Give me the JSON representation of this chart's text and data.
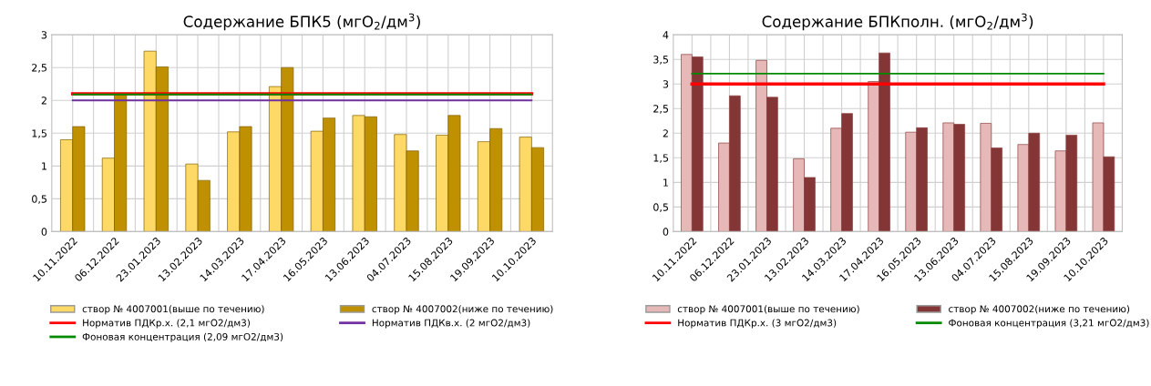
{
  "chart_data": [
    {
      "type": "bar",
      "title": "Содержание БПК5 (мгО$_{2}$/дм$^{3}$)",
      "categories": [
        "10.11.2022",
        "06.12.2022",
        "23.01.2023",
        "13.02.2023",
        "14.03.2023",
        "17.04.2023",
        "16.05.2023",
        "13.06.2023",
        "04.07.2023",
        "15.08.2023",
        "19.09.2023",
        "10.10.2023"
      ],
      "series": [
        {
          "name": "створ № 4007001(выше по течению)",
          "color": "#ffd966",
          "values": [
            1.4,
            1.12,
            2.75,
            1.03,
            1.52,
            2.21,
            1.53,
            1.77,
            1.48,
            1.47,
            1.37,
            1.44
          ]
        },
        {
          "name": "створ № 4007002(ниже по течению)",
          "color": "#bf9000",
          "values": [
            1.6,
            2.1,
            2.51,
            0.78,
            1.6,
            2.5,
            1.73,
            1.75,
            1.23,
            1.77,
            1.57,
            1.28
          ]
        },
        {
          "type": "line",
          "name": "Норматив ПДКр.х. (2,1 мгО2/дм3)",
          "color": "#ff0000",
          "values": [
            2.1,
            2.1,
            2.1,
            2.1,
            2.1,
            2.1,
            2.1,
            2.1,
            2.1,
            2.1,
            2.1,
            2.1
          ]
        },
        {
          "type": "line",
          "name": "Норматив ПДКв.х. (2 мгО2/дм3)",
          "color": "#7030a0",
          "values": [
            2,
            2,
            2,
            2,
            2,
            2,
            2,
            2,
            2,
            2,
            2,
            2
          ]
        },
        {
          "type": "line",
          "name": "Фоновая концентрация (2,09 мгО2/дм3)",
          "color": "#008a00",
          "values": [
            2.09,
            2.09,
            2.09,
            2.09,
            2.09,
            2.09,
            2.09,
            2.09,
            2.09,
            2.09,
            2.09,
            2.09
          ]
        }
      ],
      "ylim": [
        0,
        3
      ],
      "yticks": [
        0,
        {
          "value": 0.5,
          "label": "0,5"
        },
        1,
        {
          "value": 1.5,
          "label": "1,5"
        },
        2,
        {
          "value": 2.5,
          "label": "2,5"
        },
        3
      ],
      "grid": true,
      "legend": "bottom"
    },
    {
      "type": "bar",
      "title": "Содержание БПКполн. (мгО$_{2}$/дм$^{3}$)",
      "categories": [
        "10.11.2022",
        "06.12.2022",
        "23.01.2023",
        "13.02.2023",
        "14.03.2023",
        "17.04.2023",
        "16.05.2023",
        "13.06.2023",
        "04.07.2023",
        "15.08.2023",
        "19.09.2023",
        "10.10.2023"
      ],
      "series": [
        {
          "name": "створ № 4007001(выше по течению)",
          "color": "#e6b8b7",
          "values": [
            3.6,
            1.8,
            3.48,
            1.48,
            2.1,
            3.05,
            2.02,
            2.21,
            2.2,
            1.77,
            1.64,
            2.21
          ]
        },
        {
          "name": "створ № 4007002(ниже по течению)",
          "color": "#843636",
          "values": [
            3.55,
            2.76,
            2.73,
            1.1,
            2.4,
            3.63,
            2.11,
            2.18,
            1.7,
            2.0,
            1.96,
            1.52
          ]
        },
        {
          "type": "line",
          "name": "Норматив ПДКр.х. (3 мгО2/дм3)",
          "color": "#ff0000",
          "values": [
            3,
            3,
            3,
            3,
            3,
            3,
            3,
            3,
            3,
            3,
            3,
            3
          ]
        },
        {
          "type": "line",
          "name": "Фоновая концентрация (3,21 мгО2/дм3)",
          "color": "#008a00",
          "values": [
            3.21,
            3.21,
            3.21,
            3.21,
            3.21,
            3.21,
            3.21,
            3.21,
            3.21,
            3.21,
            3.21,
            3.21
          ]
        }
      ],
      "ylim": [
        0,
        4
      ],
      "yticks": [
        0,
        {
          "value": 0.5,
          "label": "0,5"
        },
        1,
        {
          "value": 1.5,
          "label": "1,5"
        },
        2,
        {
          "value": 2.5,
          "label": "2,5"
        },
        3,
        {
          "value": 3.5,
          "label": "3,5"
        },
        4
      ],
      "grid": true,
      "legend": "bottom"
    }
  ]
}
